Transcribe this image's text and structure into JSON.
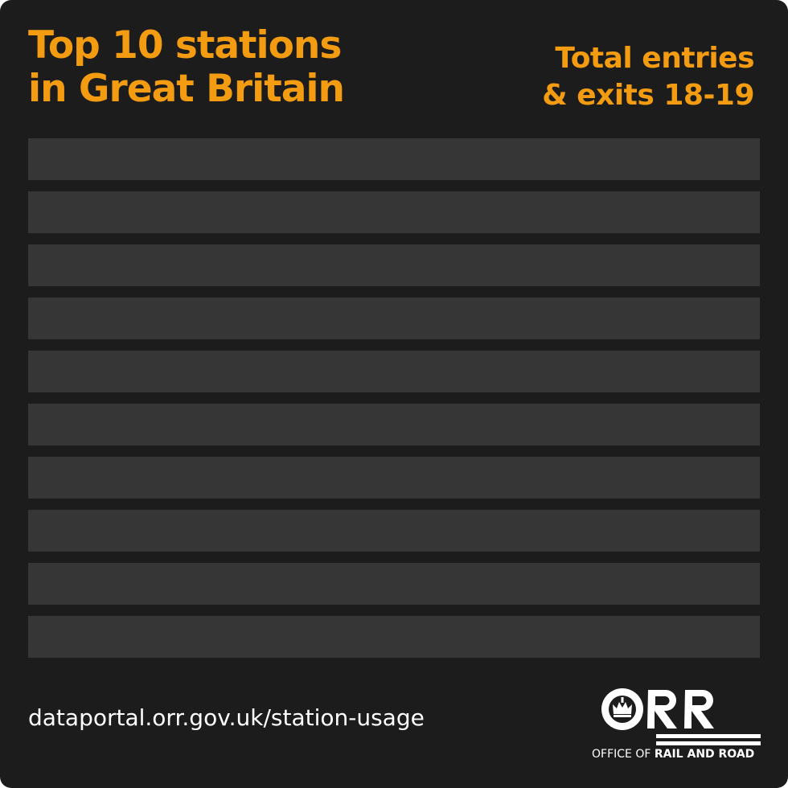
{
  "header": {
    "title_line1": "Top 10 stations",
    "title_line2": "in Great Britain",
    "subtitle_line1": "Total entries",
    "subtitle_line2": "& exits 18-19"
  },
  "rows": [
    {},
    {},
    {},
    {},
    {},
    {},
    {},
    {},
    {},
    {}
  ],
  "footer": {
    "url": "dataportal.orr.gov.uk/station-usage",
    "logo": {
      "mark": "ORR",
      "text_regular": "OFFICE OF ",
      "text_bold": "RAIL AND ROAD"
    }
  },
  "colors": {
    "background": "#1c1c1c",
    "accent": "#f39c12",
    "row": "#353535"
  }
}
